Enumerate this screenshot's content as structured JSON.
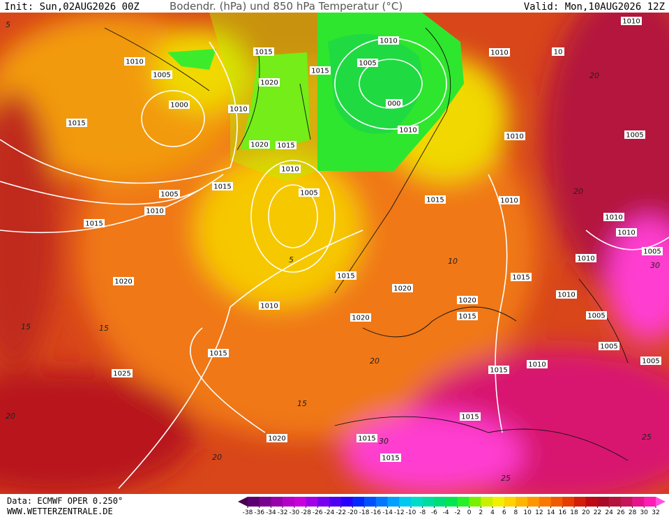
{
  "header": {
    "init": "Init: Sun,02AUG2026 00Z",
    "title": "Bodendr. (hPa) und 850 hPa Temperatur (°C)",
    "valid": "Valid: Mon,10AUG2026 12Z"
  },
  "footer": {
    "data": "Data: ECMWF OPER 0.250°",
    "site": "WWW.WETTERZENTRALE.DE"
  },
  "isobar_labels": [
    "1010",
    "1010",
    "1015",
    "1010",
    "10",
    "1010",
    "1005",
    "1020",
    "1015",
    "1005",
    "1000",
    "1010",
    "000",
    "1015",
    "1010",
    "1010",
    "1005",
    "1020",
    "1015",
    "1010",
    "1015",
    "1005",
    "1005",
    "1010",
    "1015",
    "1010",
    "1015",
    "1010",
    "1010",
    "1005",
    "1010",
    "1020",
    "1015",
    "1015",
    "1020",
    "1010",
    "1020",
    "1010",
    "1015",
    "1005",
    "1020",
    "1005",
    "1015",
    "1005",
    "1015",
    "1010",
    "1025",
    "1015",
    "1020",
    "1015",
    "1015"
  ],
  "temperature_labels": [
    "5",
    "20",
    "20",
    "15",
    "15",
    "20",
    "20",
    "25",
    "25",
    "30",
    "30",
    "5",
    "10",
    "15",
    "20"
  ],
  "colorbar": {
    "ticks": [
      -38,
      -36,
      -34,
      -32,
      -30,
      -28,
      -26,
      -24,
      -22,
      -20,
      -18,
      -16,
      -14,
      -12,
      -10,
      -8,
      -6,
      -4,
      -2,
      0,
      2,
      4,
      6,
      8,
      10,
      12,
      14,
      16,
      18,
      20,
      22,
      24,
      26,
      28,
      30,
      32
    ],
    "colors": [
      "#460050",
      "#5a0070",
      "#780090",
      "#9600aa",
      "#b400c8",
      "#c800dc",
      "#a000e6",
      "#7800f0",
      "#5000f0",
      "#2800ff",
      "#0028ff",
      "#0050ff",
      "#0078ff",
      "#00a0ff",
      "#00c8f0",
      "#00dcc8",
      "#00dca0",
      "#00dc78",
      "#00e650",
      "#28f028",
      "#78f000",
      "#c8f000",
      "#f0f000",
      "#ffd200",
      "#ffb400",
      "#ff9600",
      "#fa7800",
      "#f05a00",
      "#e63c00",
      "#d21e0a",
      "#be0a14",
      "#aa0a28",
      "#b4143c",
      "#c8145a",
      "#e6148c",
      "#ff1eb4",
      "#ff50dc"
    ]
  }
}
